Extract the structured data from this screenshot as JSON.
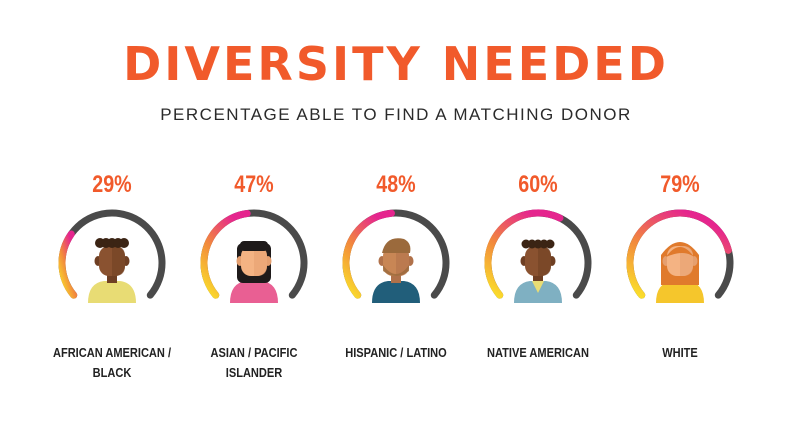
{
  "header": {
    "title": "DIVERSITY NEEDED",
    "subtitle": "PERCENTAGE ABLE TO FIND A MATCHING DONOR"
  },
  "colors": {
    "accent": "#f15a2b",
    "ring_track": "#4a4a4a",
    "gradient_start": "#fbe42a",
    "gradient_mid": "#f28a3c",
    "gradient_end": "#e5258e"
  },
  "chart_data": {
    "type": "gauge",
    "title": "DIVERSITY NEEDED",
    "subtitle": "PERCENTAGE ABLE TO FIND A MATCHING DONOR",
    "categories": [
      "AFRICAN AMERICAN / BLACK",
      "ASIAN / PACIFIC ISLANDER",
      "HISPANIC / LATINO",
      "NATIVE AMERICAN",
      "WHITE"
    ],
    "values": [
      29,
      47,
      48,
      60,
      79
    ],
    "labels": [
      "29%",
      "47%",
      "48%",
      "60%",
      "79%"
    ],
    "category_lines": [
      [
        "AFRICAN AMERICAN /",
        "BLACK"
      ],
      [
        "ASIAN / PACIFIC",
        "ISLANDER"
      ],
      [
        "HISPANIC / LATINO"
      ],
      [
        "NATIVE AMERICAN"
      ],
      [
        "WHITE"
      ]
    ],
    "icons": [
      "african-american-person-icon",
      "asian-person-icon",
      "hispanic-person-icon",
      "native-american-person-icon",
      "white-person-icon"
    ]
  }
}
